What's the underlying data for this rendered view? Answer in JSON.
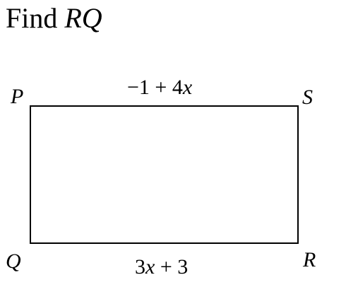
{
  "question": {
    "prefix": "Find ",
    "target": "RQ"
  },
  "vertices": {
    "P": "P",
    "S": "S",
    "Q": "Q",
    "R": "R"
  },
  "edges": {
    "top": {
      "parts": [
        "−1 + 4",
        "x"
      ]
    },
    "bottom": {
      "parts": [
        "3",
        "x",
        " + 3"
      ]
    }
  },
  "colors": {
    "stroke": "#000000",
    "background": "#ffffff"
  }
}
